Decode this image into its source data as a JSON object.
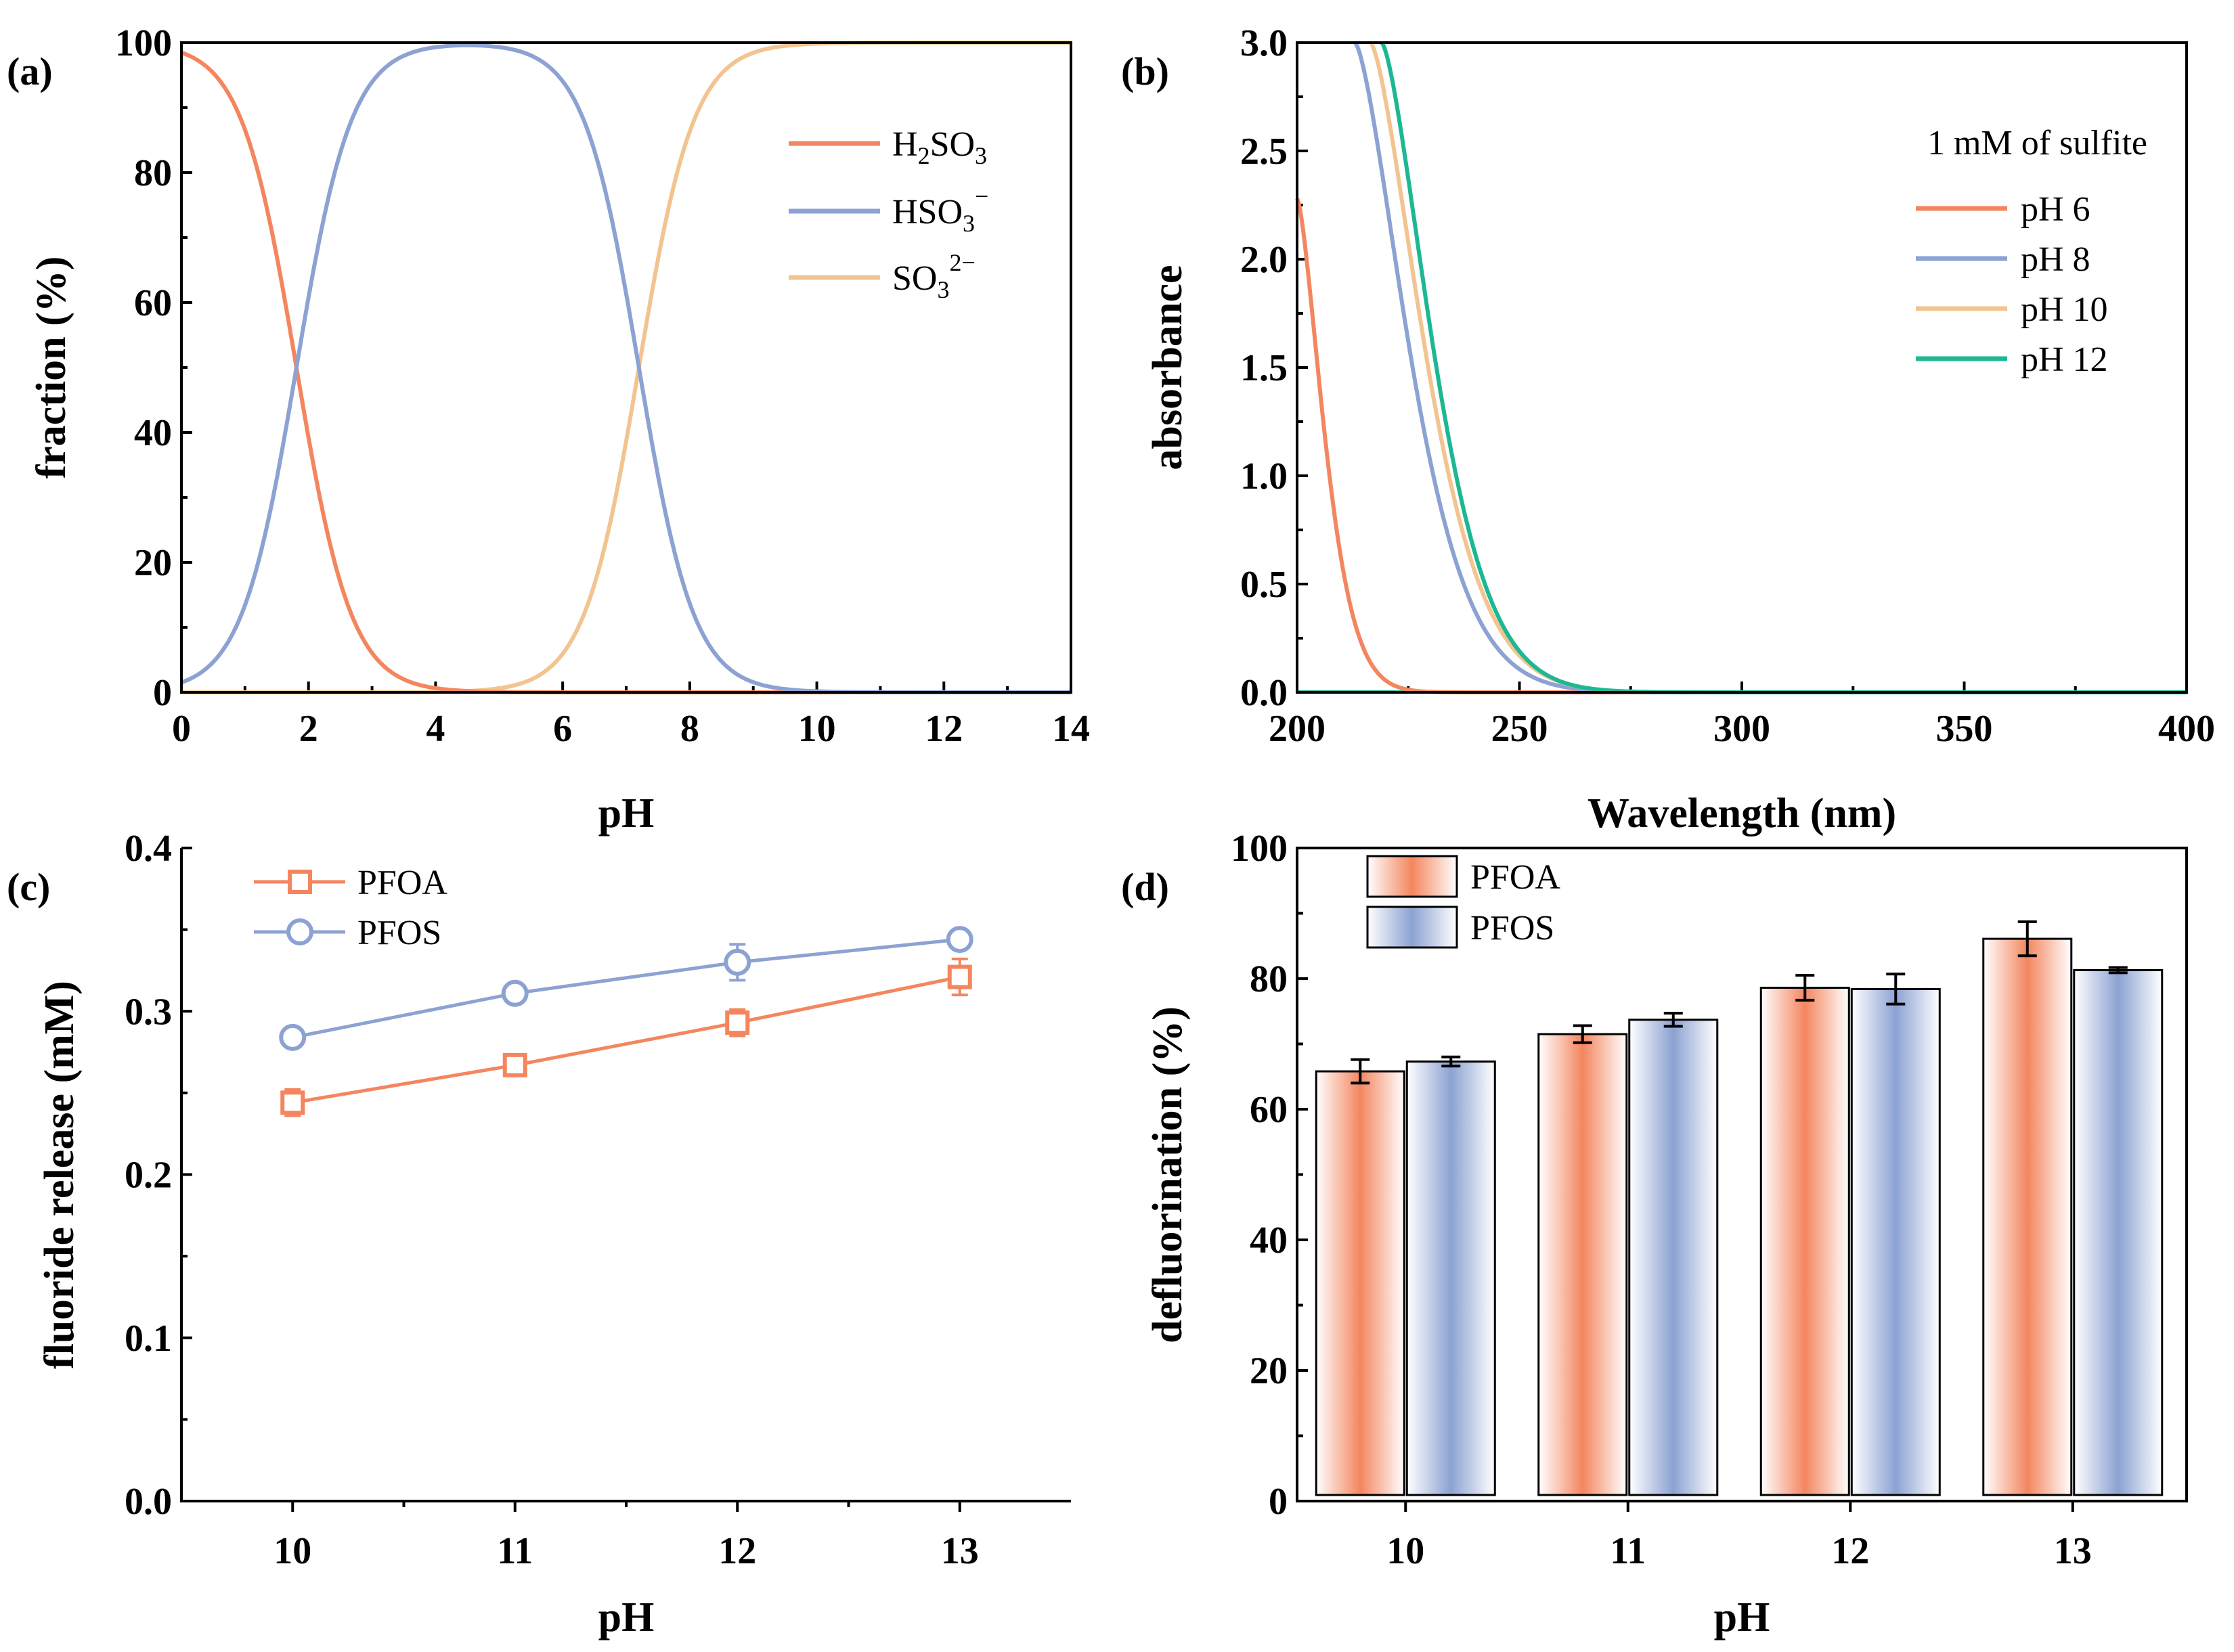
{
  "colors": {
    "orange": "#F4865F",
    "blue": "#8CA2D2",
    "tan": "#F2C490",
    "teal": "#1DB893"
  },
  "chart_data": [
    {
      "id": "a",
      "panel_label": "(a)",
      "type": "line",
      "xlabel": "pH",
      "ylabel": "fraction (%)",
      "xlim": [
        0,
        14
      ],
      "ylim": [
        0,
        100
      ],
      "xticks": [
        "0",
        "2",
        "4",
        "6",
        "8",
        "10",
        "12",
        "14"
      ],
      "yticks": [
        "0",
        "20",
        "40",
        "60",
        "80",
        "100"
      ],
      "pKa": [
        1.81,
        7.2
      ],
      "series": [
        {
          "name": "H2SO3",
          "label_main": "H",
          "label_sub1": "2",
          "label_mid": "SO",
          "label_sub2": "3",
          "label_sup": "",
          "color": "#F4865F",
          "species": 0
        },
        {
          "name": "HSO3-",
          "label_main": "HSO",
          "label_sub1": "",
          "label_mid": "",
          "label_sub2": "3",
          "label_sup": "−",
          "color": "#8CA2D2",
          "species": 1
        },
        {
          "name": "SO3 2-",
          "label_main": "SO",
          "label_sub1": "",
          "label_mid": "",
          "label_sub2": "3",
          "label_sup": "2−",
          "color": "#F2C490",
          "species": 2
        }
      ]
    },
    {
      "id": "b",
      "panel_label": "(b)",
      "type": "line",
      "xlabel": "Wavelength (nm)",
      "ylabel": "absorbance",
      "xlim": [
        200,
        400
      ],
      "ylim": [
        0,
        3.0
      ],
      "xticks": [
        "200",
        "250",
        "300",
        "350",
        "400"
      ],
      "yticks": [
        "0.0",
        "0.5",
        "1.0",
        "1.5",
        "2.0",
        "2.5",
        "3.0"
      ],
      "annotation": "1 mM of sulfite",
      "series": [
        {
          "name": "pH 6",
          "color": "#F4865F",
          "start_x": 200,
          "start_y": 2.28,
          "decay": 4.0
        },
        {
          "name": "pH 8",
          "color": "#8CA2D2",
          "start_x": 213,
          "start_y": 3.0,
          "decay": 8.0
        },
        {
          "name": "pH 10",
          "color": "#F2C490",
          "start_x": 216.5,
          "start_y": 3.0,
          "decay": 8.0
        },
        {
          "name": "pH 12",
          "color": "#1DB893",
          "start_x": 219,
          "start_y": 3.0,
          "decay": 7.6
        }
      ]
    },
    {
      "id": "c",
      "panel_label": "(c)",
      "type": "line",
      "xlabel": "pH",
      "ylabel": "fluoride release (mM)",
      "xlim": [
        9.5,
        13.5
      ],
      "ylim": [
        0,
        0.4
      ],
      "xticks": [
        "10",
        "11",
        "12",
        "13"
      ],
      "yticks": [
        "0.0",
        "0.1",
        "0.2",
        "0.3",
        "0.4"
      ],
      "x": [
        10,
        11,
        12,
        13
      ],
      "series": [
        {
          "name": "PFOA",
          "marker": "square",
          "color": "#F4865F",
          "values": [
            0.244,
            0.267,
            0.293,
            0.321
          ],
          "errors": [
            0.008,
            0.004,
            0.008,
            0.011
          ]
        },
        {
          "name": "PFOS",
          "marker": "circle",
          "color": "#8CA2D2",
          "values": [
            0.284,
            0.311,
            0.33,
            0.344
          ],
          "errors": [
            0.005,
            0.004,
            0.011,
            0.004
          ]
        }
      ]
    },
    {
      "id": "d",
      "panel_label": "(d)",
      "type": "bar",
      "xlabel": "pH",
      "ylabel": "defluorination (%)",
      "ylim": [
        0,
        100
      ],
      "categories": [
        "10",
        "11",
        "12",
        "13"
      ],
      "yticks": [
        "0",
        "20",
        "40",
        "60",
        "80",
        "100"
      ],
      "series": [
        {
          "name": "PFOA",
          "color": "#F4865F",
          "values": [
            65.8,
            71.5,
            78.6,
            86.1
          ],
          "errors": [
            1.8,
            1.3,
            1.9,
            2.6
          ]
        },
        {
          "name": "PFOS",
          "color": "#8CA2D2",
          "values": [
            67.3,
            73.7,
            78.4,
            81.3
          ],
          "errors": [
            0.7,
            1.0,
            2.3,
            0.4
          ]
        }
      ]
    }
  ]
}
